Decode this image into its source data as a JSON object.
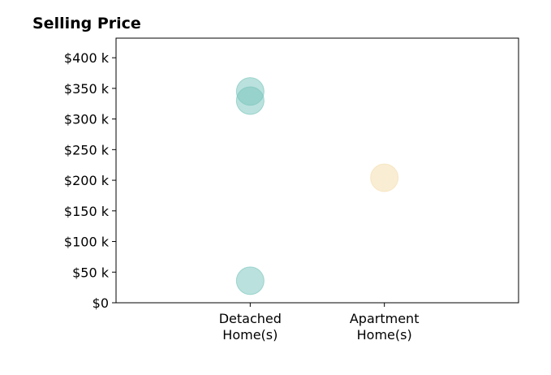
{
  "chart_data": {
    "type": "scatter",
    "title": "Selling Price",
    "xlabel": "",
    "ylabel": "",
    "categories": [
      [
        "Detached",
        "Home(s)"
      ],
      [
        "Apartment",
        "Home(s)"
      ]
    ],
    "y_ticks": [
      0,
      50000,
      100000,
      150000,
      200000,
      250000,
      300000,
      350000,
      400000
    ],
    "y_tick_labels": [
      "$0",
      "$50 k",
      "$100 k",
      "$150 k",
      "$200 k",
      "$250 k",
      "$300 k",
      "$350 k",
      "$400 k"
    ],
    "ylim": [
      0,
      432000
    ],
    "xlim": [
      -1,
      2
    ],
    "grid": false,
    "legend": "none",
    "series": [
      {
        "category": "Detached Home(s)",
        "color": "#75c3bb",
        "points": [
          {
            "x": 0,
            "y": 345000
          },
          {
            "x": 0,
            "y": 330000
          },
          {
            "x": 0,
            "y": 36000
          }
        ]
      },
      {
        "category": "Apartment Home(s)",
        "color": "#f4dcaa",
        "points": [
          {
            "x": 1,
            "y": 204000
          }
        ]
      }
    ]
  }
}
